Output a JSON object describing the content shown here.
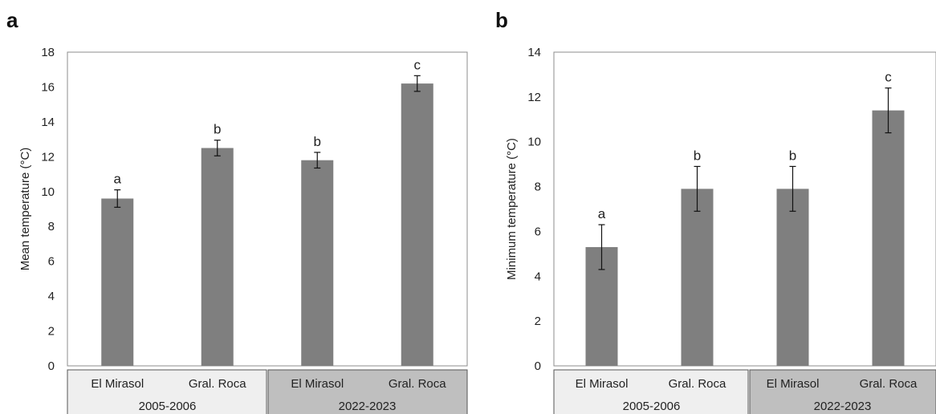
{
  "chart_data": [
    {
      "type": "bar",
      "panel_label": "a",
      "ylabel": "Mean temperature (°C)",
      "ylim": [
        0,
        18
      ],
      "yticks": [
        0,
        2,
        4,
        6,
        8,
        10,
        12,
        14,
        16,
        18
      ],
      "groups": [
        {
          "label": "2005-2006",
          "shade": "#efefef",
          "categories": [
            "El Mirasol",
            "Gral. Roca"
          ]
        },
        {
          "label": "2022-2023",
          "shade": "#bfbfbf",
          "categories": [
            "El Mirasol",
            "Gral. Roca"
          ]
        }
      ],
      "categories": [
        "El Mirasol",
        "Gral. Roca",
        "El Mirasol",
        "Gral. Roca"
      ],
      "values": [
        9.6,
        12.5,
        11.8,
        16.2
      ],
      "errors": [
        0.5,
        0.45,
        0.45,
        0.45
      ],
      "significance": [
        "a",
        "b",
        "b",
        "c"
      ],
      "bar_color": "#7f7f7f",
      "grid": false
    },
    {
      "type": "bar",
      "panel_label": "b",
      "ylabel": "Minimum temperature (°C)",
      "ylim": [
        0,
        14
      ],
      "yticks": [
        0,
        2,
        4,
        6,
        8,
        10,
        12,
        14
      ],
      "groups": [
        {
          "label": "2005-2006",
          "shade": "#efefef",
          "categories": [
            "El Mirasol",
            "Gral. Roca"
          ]
        },
        {
          "label": "2022-2023",
          "shade": "#bfbfbf",
          "categories": [
            "El Mirasol",
            "Gral. Roca"
          ]
        }
      ],
      "categories": [
        "El Mirasol",
        "Gral. Roca",
        "El Mirasol",
        "Gral. Roca"
      ],
      "values": [
        5.3,
        7.9,
        7.9,
        11.4
      ],
      "errors": [
        1.0,
        1.0,
        1.0,
        1.0
      ],
      "significance": [
        "a",
        "b",
        "b",
        "c"
      ],
      "bar_color": "#7f7f7f",
      "grid": false
    }
  ]
}
